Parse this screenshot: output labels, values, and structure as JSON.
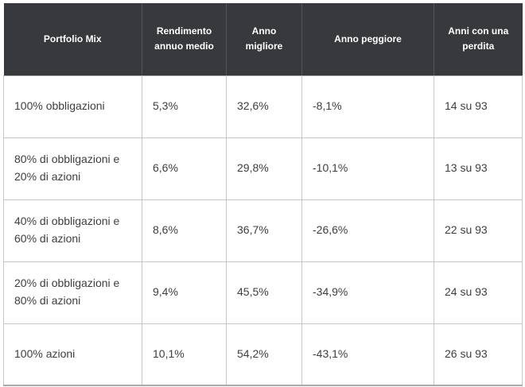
{
  "colors": {
    "header_bg": "#37393c",
    "header_text": "#ffffff",
    "header_divider": "#54575a",
    "body_border": "#c6c6c6",
    "body_text": "#3d3e40",
    "page_bg": "#ffffff"
  },
  "chart_data": {
    "type": "table",
    "title": "",
    "columns": [
      "Portfolio Mix",
      "Rendimento annuo medio",
      "Anno migliore",
      "Anno peggiore",
      "Anni con una perdita"
    ],
    "rows": [
      [
        "100% obbligazioni",
        "5,3%",
        "32,6%",
        "-8,1%",
        "14 su 93"
      ],
      [
        "80% di obbligazioni e 20% di azioni",
        "6,6%",
        "29,8%",
        "-10,1%",
        "13 su 93"
      ],
      [
        "40% di obbligazioni e 60% di azioni",
        "8,6%",
        "36,7%",
        "-26,6%",
        "22 su 93"
      ],
      [
        "20% di obbligazioni e 80% di azioni",
        "9,4%",
        "45,5%",
        "-34,9%",
        "24 su 93"
      ],
      [
        "100% azioni",
        "10,1%",
        "54,2%",
        "-43,1%",
        "26 su 93"
      ]
    ]
  }
}
